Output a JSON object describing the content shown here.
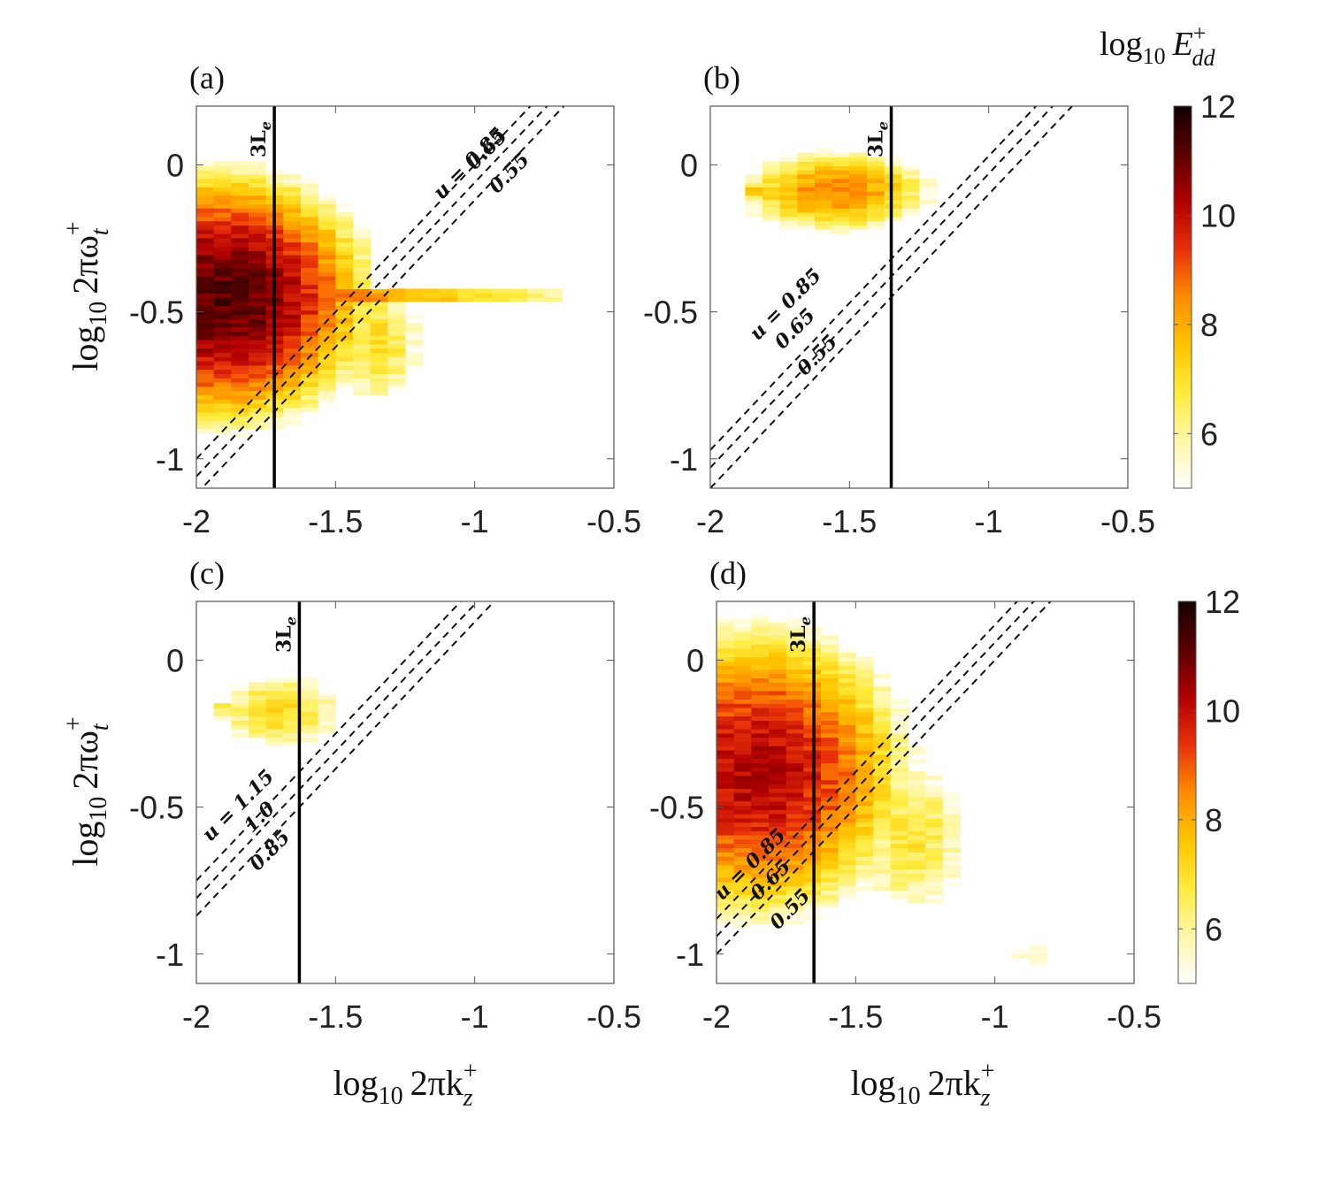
{
  "colorbar": {
    "title_prefix": "log",
    "title_sub": "10",
    "title_var": "E",
    "title_sup": "+",
    "title_var_sub": "dd",
    "ticks": [
      "6",
      "8",
      "10",
      "12"
    ],
    "range": [
      5,
      12
    ],
    "colors": [
      "#ffffff",
      "#fff7a8",
      "#ffeb3c",
      "#ffc400",
      "#ff8c00",
      "#e8300a",
      "#b00000",
      "#5a0000",
      "#120000"
    ]
  },
  "xlabel": {
    "prefix": "log",
    "sub": "10",
    "body": "2πk",
    "sup": "+",
    "var_sub": "z"
  },
  "ylabel": {
    "prefix": "log",
    "sub": "10",
    "body": "2πω",
    "sup": "+",
    "var_sub": "t"
  },
  "chart_data": [
    {
      "id": "a",
      "label": "(a)",
      "type": "heatmap",
      "title": "",
      "xlabel": "log10 2πk_z+",
      "ylabel": "log10 2πω_t+",
      "xlim": [
        -2,
        -0.5
      ],
      "ylim": [
        -1.1,
        0.2
      ],
      "xticks": [
        "-2",
        "-1.5",
        "-1",
        "-0.5"
      ],
      "yticks": [
        "0",
        "-0.5",
        "-1"
      ],
      "xtick_values": [
        -2,
        -1.5,
        -1,
        -0.5
      ],
      "ytick_values": [
        0,
        -0.5,
        -1
      ],
      "blobs": [
        {
          "x0": -2.0,
          "x1": -1.35,
          "y0": -0.95,
          "y1": 0.15,
          "cx": -1.9,
          "cy": -0.45,
          "sx": 0.55,
          "sy": 0.45,
          "peak": 11.2
        },
        {
          "x0": -1.5,
          "x1": -1.1,
          "y0": -1.0,
          "y1": -0.3,
          "cx": -1.35,
          "cy": -0.6,
          "sx": 0.25,
          "sy": 0.35,
          "peak": 7.0
        }
      ],
      "line_peak": {
        "y": -0.44,
        "x0": -2.0,
        "x1": -0.7,
        "value": 10.5
      },
      "vline": {
        "x": -1.72,
        "label": "3L",
        "label_sub": "e"
      },
      "diagonals": [
        {
          "u": 0.85,
          "intercept_y_at_xmin": -1.0,
          "slope": 1.0
        },
        {
          "u": 0.65,
          "intercept_y_at_xmin": -1.06,
          "slope": 1.0
        },
        {
          "u": 0.55,
          "intercept_y_at_xmin": -1.12,
          "slope": 1.0
        }
      ],
      "annotations": [
        {
          "text": "u = 0.85",
          "x": -1.12,
          "y": -0.12
        },
        {
          "text": "0.65",
          "x": -1.0,
          "y": -0.02
        },
        {
          "text": "0.55",
          "x": -0.92,
          "y": -0.1
        }
      ]
    },
    {
      "id": "b",
      "label": "(b)",
      "type": "heatmap",
      "xlim": [
        -2,
        -0.5
      ],
      "ylim": [
        -1.1,
        0.2
      ],
      "xticks": [
        "-2",
        "-1.5",
        "-1",
        "-0.5"
      ],
      "yticks": [
        "0",
        "-0.5",
        "-1"
      ],
      "xtick_values": [
        -2,
        -1.5,
        -1,
        -0.5
      ],
      "ytick_values": [
        0,
        -0.5,
        -1
      ],
      "blobs": [
        {
          "x0": -2.0,
          "x1": -1.1,
          "y0": -0.5,
          "y1": 0.1,
          "cx": -1.55,
          "cy": -0.09,
          "sx": 0.45,
          "sy": 0.18,
          "peak": 8.5
        }
      ],
      "line_peak": {
        "y": -0.09,
        "x0": -1.9,
        "x1": -1.3,
        "value": 8.2
      },
      "vline": {
        "x": -1.35,
        "label": "3L",
        "label_sub": "e"
      },
      "diagonals": [
        {
          "u": 0.85,
          "intercept_y_at_xmin": -0.97,
          "slope": 1.0
        },
        {
          "u": 0.65,
          "intercept_y_at_xmin": -1.03,
          "slope": 1.0
        },
        {
          "u": 0.55,
          "intercept_y_at_xmin": -1.1,
          "slope": 1.0
        }
      ],
      "annotations": [
        {
          "text": "u = 0.85",
          "x": -1.83,
          "y": -0.6
        },
        {
          "text": "0.65",
          "x": -1.74,
          "y": -0.63
        },
        {
          "text": "0.55",
          "x": -1.66,
          "y": -0.72
        }
      ]
    },
    {
      "id": "c",
      "label": "(c)",
      "type": "heatmap",
      "xlim": [
        -2,
        -0.5
      ],
      "ylim": [
        -1.1,
        0.2
      ],
      "xticks": [
        "-2",
        "-1.5",
        "-1",
        "-0.5"
      ],
      "yticks": [
        "0",
        "-0.5",
        "-1"
      ],
      "xtick_values": [
        -2,
        -1.5,
        -1,
        -0.5
      ],
      "ytick_values": [
        0,
        -0.5,
        -1
      ],
      "blobs": [
        {
          "x0": -1.96,
          "x1": -1.32,
          "y0": -0.35,
          "y1": 0.0,
          "cx": -1.7,
          "cy": -0.17,
          "sx": 0.35,
          "sy": 0.2,
          "peak": 7.2
        }
      ],
      "line_peak": {
        "y": -0.17,
        "x0": -1.96,
        "x1": -1.4,
        "value": 7.0
      },
      "vline": {
        "x": -1.63,
        "label": "3L",
        "label_sub": "e"
      },
      "diagonals": [
        {
          "u": 1.15,
          "intercept_y_at_xmin": -0.75,
          "slope": 1.0
        },
        {
          "u": 1.0,
          "intercept_y_at_xmin": -0.81,
          "slope": 1.0
        },
        {
          "u": 0.85,
          "intercept_y_at_xmin": -0.87,
          "slope": 1.0
        }
      ],
      "annotations": [
        {
          "text": "u = 1.15",
          "x": -1.95,
          "y": -0.62
        },
        {
          "text": "1.0",
          "x": -1.8,
          "y": -0.59
        },
        {
          "text": "0.85",
          "x": -1.78,
          "y": -0.72
        }
      ]
    },
    {
      "id": "d",
      "label": "(d)",
      "type": "heatmap",
      "xlim": [
        -2,
        -0.5
      ],
      "ylim": [
        -1.1,
        0.2
      ],
      "xticks": [
        "-2",
        "-1.5",
        "-1",
        "-0.5"
      ],
      "yticks": [
        "0",
        "-0.5",
        "-1"
      ],
      "xtick_values": [
        -2,
        -1.5,
        -1,
        -0.5
      ],
      "ytick_values": [
        0,
        -0.5,
        -1
      ],
      "blobs": [
        {
          "x0": -2.0,
          "x1": -1.2,
          "y0": -1.1,
          "y1": 0.2,
          "cx": -1.85,
          "cy": -0.38,
          "sx": 0.6,
          "sy": 0.55,
          "peak": 10.2
        },
        {
          "x0": -1.6,
          "x1": -1.0,
          "y0": -1.1,
          "y1": -0.2,
          "cx": -1.3,
          "cy": -0.6,
          "sx": 0.35,
          "sy": 0.45,
          "peak": 6.8
        },
        {
          "x0": -1.0,
          "x1": -0.7,
          "y0": -1.1,
          "y1": -0.8,
          "cx": -0.85,
          "cy": -1.0,
          "sx": 0.2,
          "sy": 0.15,
          "peak": 5.6
        }
      ],
      "line_peak": null,
      "vline": {
        "x": -1.65,
        "label": "3L",
        "label_sub": "e"
      },
      "diagonals": [
        {
          "u": 0.85,
          "intercept_y_at_xmin": -0.88,
          "slope": 1.0
        },
        {
          "u": 0.65,
          "intercept_y_at_xmin": -0.94,
          "slope": 1.0
        },
        {
          "u": 0.55,
          "intercept_y_at_xmin": -1.0,
          "slope": 1.0
        }
      ],
      "annotations": [
        {
          "text": "u = 0.85",
          "x": -1.98,
          "y": -0.82
        },
        {
          "text": "0.65",
          "x": -1.85,
          "y": -0.82
        },
        {
          "text": "0.55",
          "x": -1.78,
          "y": -0.92
        }
      ]
    }
  ]
}
